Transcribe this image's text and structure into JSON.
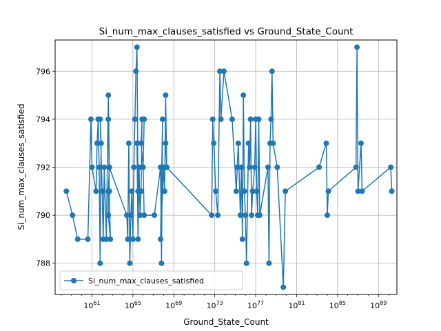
{
  "chart_data": {
    "type": "line",
    "title": "Si_num_max_clauses_satisfied vs Ground_State_Count",
    "xlabel": "Ground_State_Count",
    "ylabel": "Si_num_max_clauses_satisfied",
    "x_scale": "log10",
    "xlim_log10": [
      57.4,
      90.8
    ],
    "ylim": [
      786.7,
      797.3
    ],
    "x_ticks": [
      {
        "log10": 61,
        "base": "10",
        "exp": "61"
      },
      {
        "log10": 65,
        "base": "10",
        "exp": "65"
      },
      {
        "log10": 69,
        "base": "10",
        "exp": "69"
      },
      {
        "log10": 73,
        "base": "10",
        "exp": "73"
      },
      {
        "log10": 77,
        "base": "10",
        "exp": "77"
      },
      {
        "log10": 81,
        "base": "10",
        "exp": "81"
      },
      {
        "log10": 85,
        "base": "10",
        "exp": "85"
      },
      {
        "log10": 89,
        "base": "10",
        "exp": "89"
      }
    ],
    "y_ticks": [
      788,
      790,
      792,
      794,
      796
    ],
    "grid": true,
    "legend_position": "lower-left",
    "color": "#1f77b4",
    "series": [
      {
        "name": "Si_num_max_clauses_satisfied",
        "log10_x": [
          58.5,
          59.1,
          59.6,
          60.6,
          60.9,
          61.0,
          61.4,
          61.5,
          61.6,
          61.7,
          61.8,
          61.9,
          61.8,
          62.0,
          62.1,
          62.2,
          62.4,
          62.6,
          62.7,
          62.6,
          62.6,
          62.8,
          62.7,
          62.6,
          62.7,
          64.4,
          64.5,
          64.6,
          64.7,
          64.8,
          64.9,
          65.0,
          65.1,
          65.2,
          65.3,
          65.4,
          65.5,
          65.4,
          65.5,
          65.6,
          65.7,
          65.8,
          65.9,
          65.8,
          66.0,
          66.1,
          66.0,
          66.1,
          67.1,
          67.7,
          67.8,
          67.9,
          67.7,
          68.0,
          68.1,
          68.2,
          68.3,
          68.2,
          68.3,
          72.7,
          72.8,
          72.9,
          73.1,
          73.3,
          73.5,
          73.6,
          73.9,
          74.7,
          75.1,
          75.2,
          75.3,
          75.5,
          75.6,
          75.7,
          75.8,
          75.9,
          76.0,
          76.1,
          76.3,
          76.4,
          76.5,
          76.6,
          76.7,
          76.9,
          77.0,
          77.1,
          77.2,
          77.3,
          77.4,
          78.2,
          78.3,
          78.4,
          78.5,
          78.6,
          78.7,
          79.1,
          79.7,
          79.9,
          83.2,
          83.9,
          84.0,
          84.1,
          86.8,
          86.9,
          87.0,
          87.3,
          87.4,
          90.2,
          90.3
        ],
        "y": [
          791,
          790,
          789,
          789,
          794,
          792,
          791,
          793,
          794,
          792,
          788,
          793,
          794,
          791,
          789,
          792,
          789,
          795,
          792,
          791,
          790,
          789,
          791,
          794,
          792,
          790,
          789,
          793,
          788,
          790,
          791,
          789,
          792,
          794,
          796,
          797,
          791,
          793,
          789,
          792,
          790,
          791,
          794,
          793,
          792,
          794,
          792,
          790,
          790,
          792,
          788,
          794,
          789,
          792,
          791,
          795,
          792,
          793,
          792,
          790,
          794,
          793,
          791,
          790,
          796,
          794,
          796,
          794,
          791,
          792,
          793,
          790,
          792,
          789,
          795,
          791,
          790,
          788,
          793,
          792,
          794,
          790,
          791,
          792,
          794,
          791,
          790,
          794,
          790,
          792,
          788,
          793,
          794,
          796,
          793,
          792,
          787,
          791,
          792,
          793,
          790,
          791,
          792,
          797,
          791,
          793,
          791,
          792,
          791
        ]
      }
    ]
  }
}
